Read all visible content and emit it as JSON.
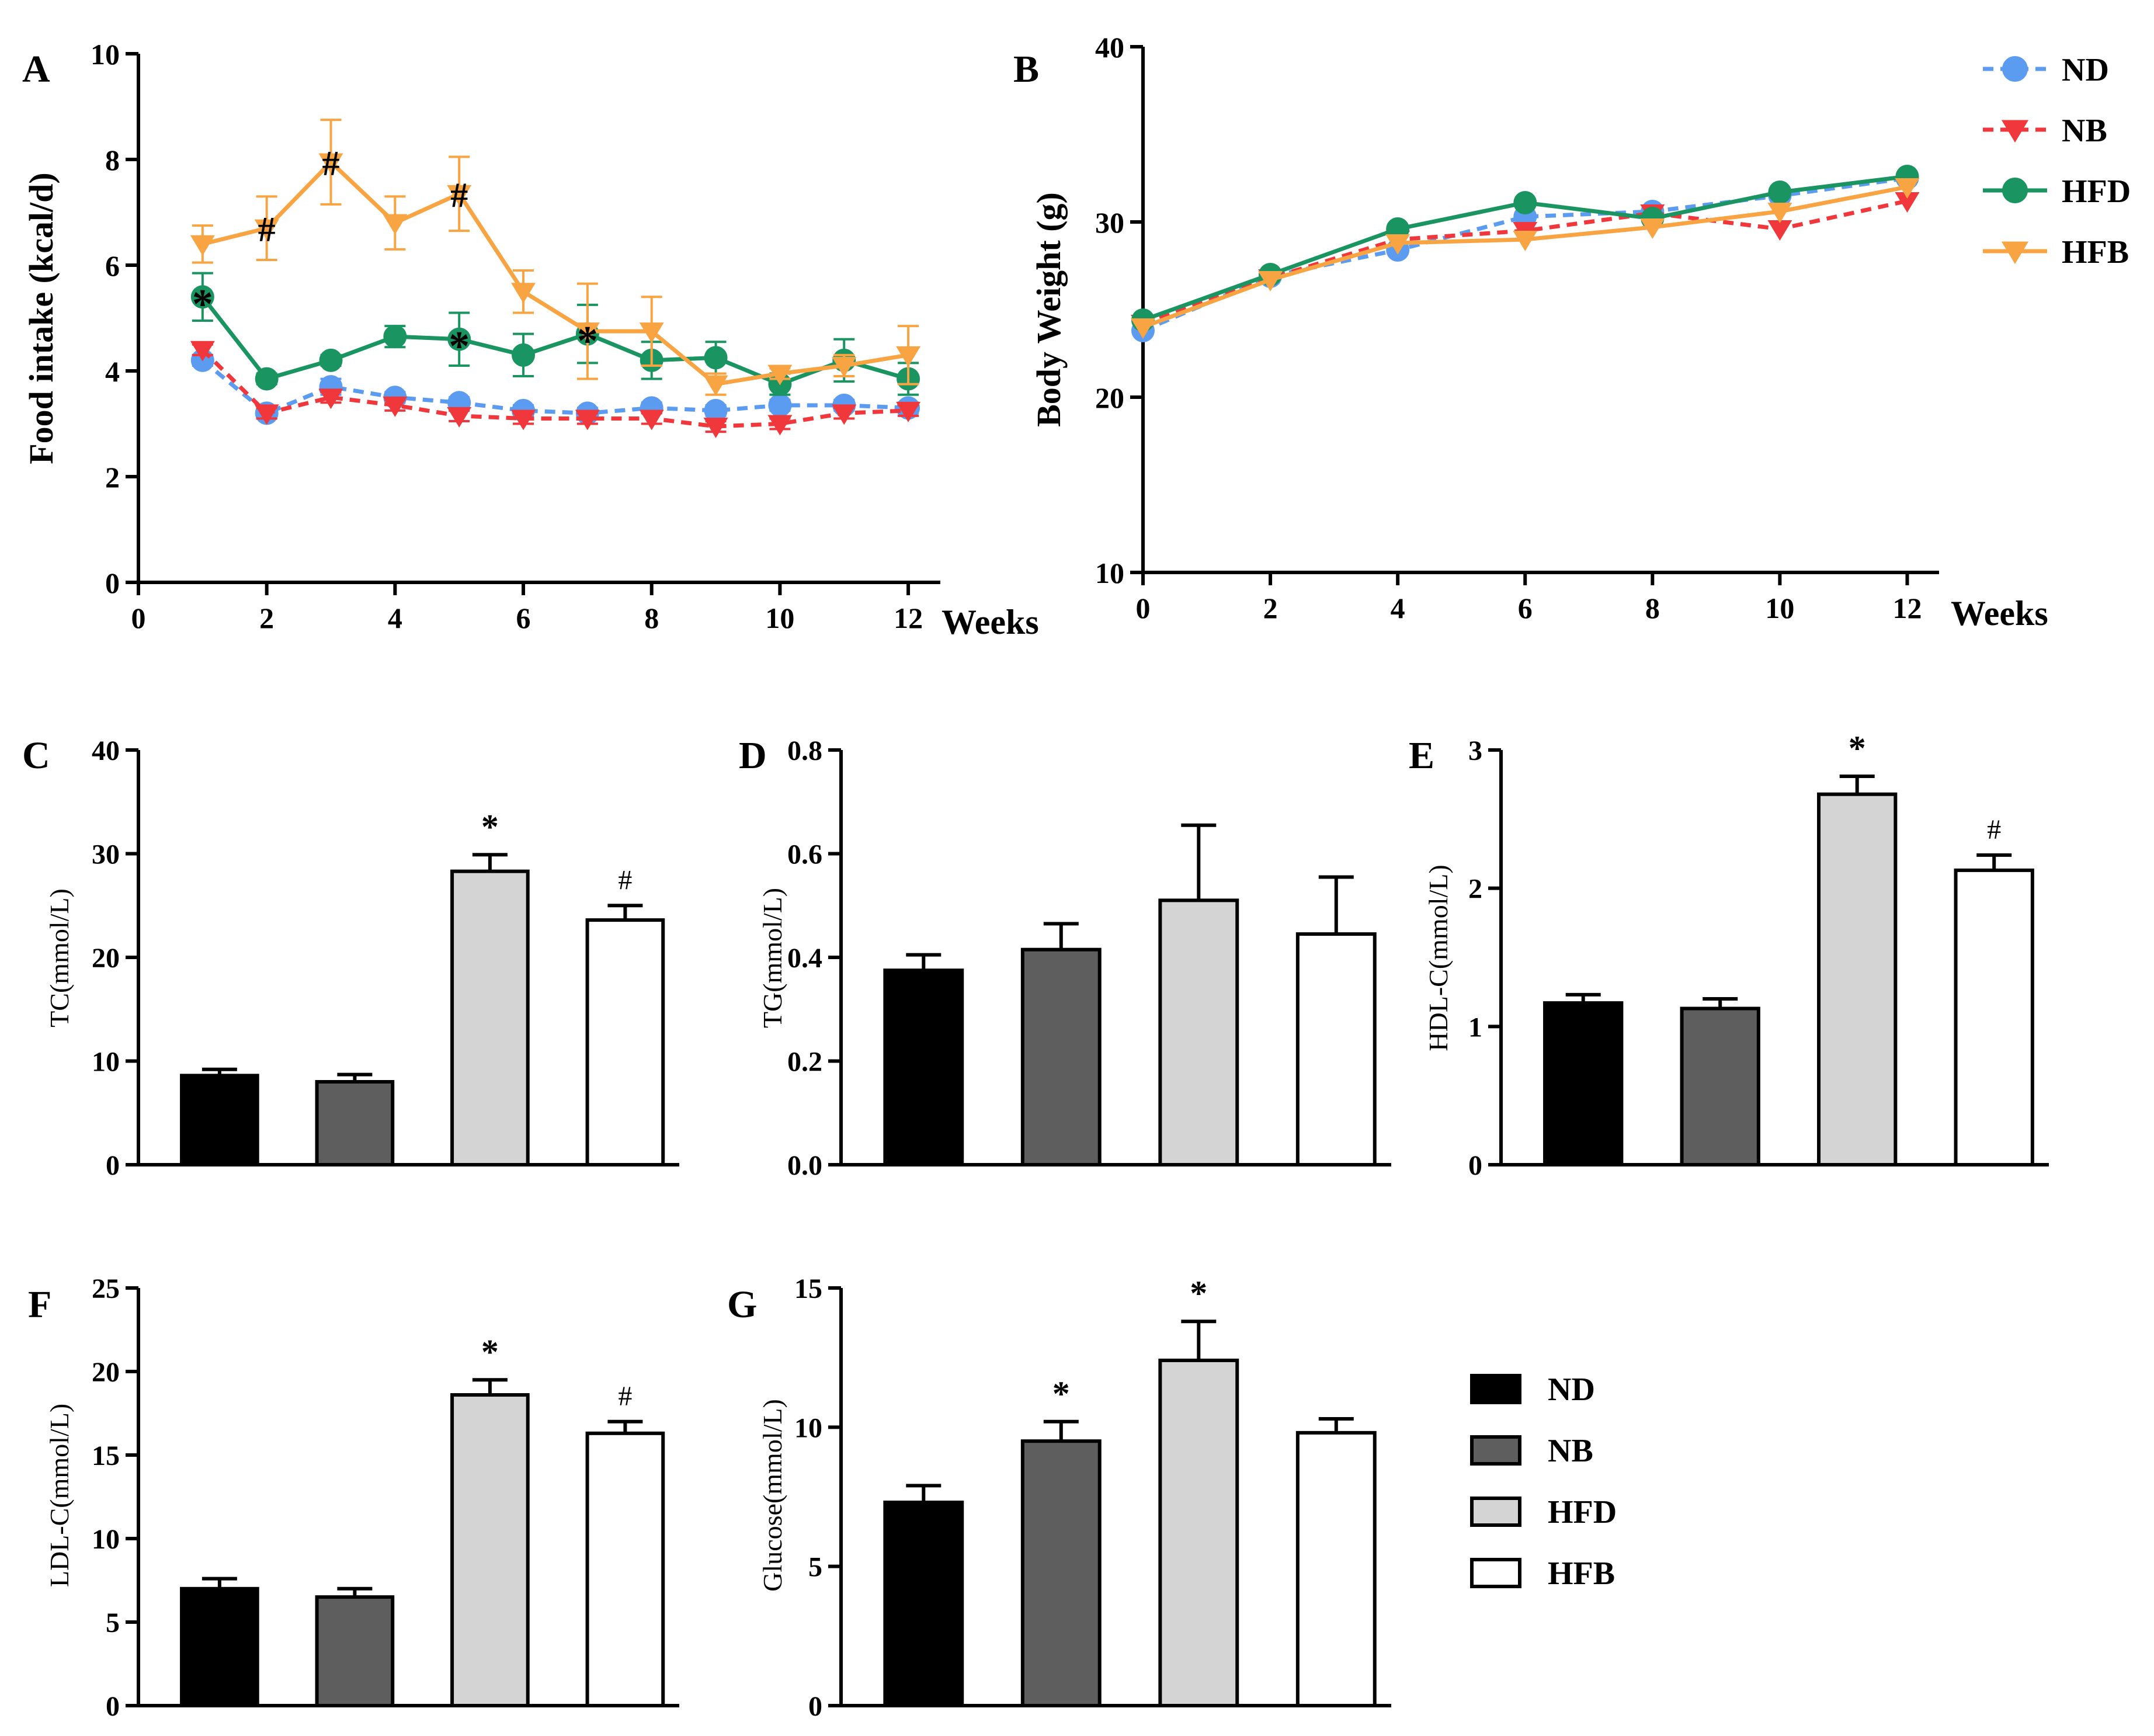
{
  "chart_data": [
    {
      "id": "A",
      "type": "line",
      "label": "A",
      "ylabel": "Food intake (kcal/d)",
      "xlabel": "Weeks",
      "xlim": [
        0,
        12.5
      ],
      "ylim": [
        0,
        10
      ],
      "xticks": [
        0,
        2,
        4,
        6,
        8,
        10,
        12
      ],
      "yticks": [
        0,
        2,
        4,
        6,
        8,
        10
      ],
      "x": [
        1,
        2,
        3,
        4,
        5,
        6,
        7,
        8,
        9,
        10,
        11,
        12
      ],
      "series": [
        {
          "name": "ND",
          "values": [
            4.2,
            3.2,
            3.7,
            3.5,
            3.4,
            3.25,
            3.2,
            3.3,
            3.25,
            3.35,
            3.35,
            3.3
          ],
          "errors": [
            0.1,
            0.1,
            0.15,
            0.1,
            0.1,
            0.1,
            0.1,
            0.1,
            0.1,
            0.1,
            0.1,
            0.1
          ]
        },
        {
          "name": "NB",
          "values": [
            4.4,
            3.2,
            3.5,
            3.35,
            3.15,
            3.1,
            3.1,
            3.1,
            2.95,
            3.0,
            3.2,
            3.25
          ],
          "errors": [
            0.1,
            0.1,
            0.1,
            0.1,
            0.1,
            0.1,
            0.1,
            0.1,
            0.1,
            0.1,
            0.1,
            0.1
          ]
        },
        {
          "name": "HFD",
          "values": [
            5.4,
            3.85,
            4.2,
            4.65,
            4.6,
            4.3,
            4.7,
            4.2,
            4.25,
            3.75,
            4.2,
            3.85
          ],
          "errors": [
            0.45,
            0.1,
            0.1,
            0.2,
            0.5,
            0.4,
            0.55,
            0.35,
            0.3,
            0.2,
            0.4,
            0.3
          ]
        },
        {
          "name": "HFB",
          "values": [
            6.4,
            6.7,
            7.95,
            6.8,
            7.35,
            5.5,
            4.75,
            4.75,
            3.75,
            3.95,
            4.1,
            4.3
          ],
          "errors": [
            0.35,
            0.6,
            0.8,
            0.5,
            0.7,
            0.4,
            0.9,
            0.65,
            0.2,
            0.1,
            0.2,
            0.55
          ]
        }
      ],
      "annotations": [
        {
          "x": 1,
          "y": 5.4,
          "text": "*"
        },
        {
          "x": 5,
          "y": 4.6,
          "text": "*"
        },
        {
          "x": 7,
          "y": 4.7,
          "text": "*"
        },
        {
          "x": 2,
          "y": 6.7,
          "text": "#"
        },
        {
          "x": 3,
          "y": 7.95,
          "text": "#"
        },
        {
          "x": 5,
          "y": 7.35,
          "text": "#"
        }
      ]
    },
    {
      "id": "B",
      "type": "line",
      "label": "B",
      "ylabel": "Body Weight (g)",
      "xlabel": "Weeks",
      "xlim": [
        0,
        12.5
      ],
      "ylim": [
        10,
        40
      ],
      "xticks": [
        0,
        2,
        4,
        6,
        8,
        10,
        12
      ],
      "yticks": [
        10,
        20,
        30,
        40
      ],
      "x": [
        0,
        2,
        4,
        6,
        8,
        10,
        12
      ],
      "series": [
        {
          "name": "ND",
          "values": [
            23.8,
            26.9,
            28.4,
            30.3,
            30.6,
            31.5,
            32.5
          ]
        },
        {
          "name": "NB",
          "values": [
            24.2,
            26.8,
            29.0,
            29.5,
            30.5,
            29.6,
            31.2
          ]
        },
        {
          "name": "HFD",
          "values": [
            24.4,
            27.0,
            29.6,
            31.1,
            30.2,
            31.7,
            32.6
          ]
        },
        {
          "name": "HFB",
          "values": [
            24.0,
            26.7,
            28.8,
            29.0,
            29.7,
            30.6,
            32.0
          ]
        }
      ],
      "legend": [
        "ND",
        "NB",
        "HFD",
        "HFB"
      ]
    },
    {
      "id": "C",
      "type": "bar",
      "label": "C",
      "ylabel": "TC(mmol/L)",
      "ylim": [
        0,
        40
      ],
      "yticks": [
        "0",
        "10",
        "20",
        "30",
        "40"
      ],
      "categories": [
        "ND",
        "NB",
        "HFD",
        "HFB"
      ],
      "values": [
        8.6,
        8.0,
        28.3,
        23.6
      ],
      "errors": [
        0.6,
        0.7,
        1.6,
        1.4
      ],
      "marks": [
        "",
        "",
        "*",
        "#"
      ]
    },
    {
      "id": "D",
      "type": "bar",
      "label": "D",
      "ylabel": "TG(mmol/L)",
      "ylim": [
        0,
        0.8
      ],
      "yticks": [
        "0.0",
        "0.2",
        "0.4",
        "0.6",
        "0.8"
      ],
      "categories": [
        "ND",
        "NB",
        "HFD",
        "HFB"
      ],
      "values": [
        0.375,
        0.415,
        0.51,
        0.445
      ],
      "errors": [
        0.03,
        0.05,
        0.145,
        0.11
      ],
      "marks": [
        "",
        "",
        "",
        ""
      ]
    },
    {
      "id": "E",
      "type": "bar",
      "label": "E",
      "ylabel": "HDL-C(mmol/L)",
      "ylim": [
        0,
        3
      ],
      "yticks": [
        "0",
        "1",
        "2",
        "3"
      ],
      "categories": [
        "ND",
        "NB",
        "HFD",
        "HFB"
      ],
      "values": [
        1.17,
        1.13,
        2.68,
        2.13
      ],
      "errors": [
        0.06,
        0.07,
        0.13,
        0.11
      ],
      "marks": [
        "",
        "",
        "*",
        "#"
      ]
    },
    {
      "id": "F",
      "type": "bar",
      "label": "F",
      "ylabel": "LDL-C(mmol/L)",
      "ylim": [
        0,
        25
      ],
      "yticks": [
        "0",
        "5",
        "10",
        "15",
        "20",
        "25"
      ],
      "categories": [
        "ND",
        "NB",
        "HFD",
        "HFB"
      ],
      "values": [
        7.0,
        6.5,
        18.6,
        16.3
      ],
      "errors": [
        0.6,
        0.5,
        0.9,
        0.7
      ],
      "marks": [
        "",
        "",
        "*",
        "#"
      ]
    },
    {
      "id": "G",
      "type": "bar",
      "label": "G",
      "ylabel": "Glucose(mmol/L)",
      "ylim": [
        0,
        15
      ],
      "yticks": [
        "0",
        "5",
        "10",
        "15"
      ],
      "categories": [
        "ND",
        "NB",
        "HFD",
        "HFB"
      ],
      "values": [
        7.3,
        9.5,
        12.4,
        9.8
      ],
      "errors": [
        0.6,
        0.7,
        1.4,
        0.5
      ],
      "marks": [
        "",
        "*",
        "*",
        ""
      ]
    }
  ],
  "bar_legend": [
    "ND",
    "NB",
    "HFD",
    "HFB"
  ],
  "colors": {
    "ND": "#5b9bf0",
    "NB": "#f0383c",
    "HFD": "#1a9460",
    "HFB": "#f8a443",
    "bar_ND": "#000000",
    "bar_NB": "#5e5e5e",
    "bar_HFD": "#d4d4d4",
    "bar_HFB": "#ffffff"
  },
  "line_styles": {
    "ND": "dashed",
    "NB": "dashed",
    "HFD": "solid",
    "HFB": "solid"
  },
  "markers": {
    "ND": "circle",
    "NB": "triangle-down",
    "HFD": "circle",
    "HFB": "triangle-down"
  }
}
